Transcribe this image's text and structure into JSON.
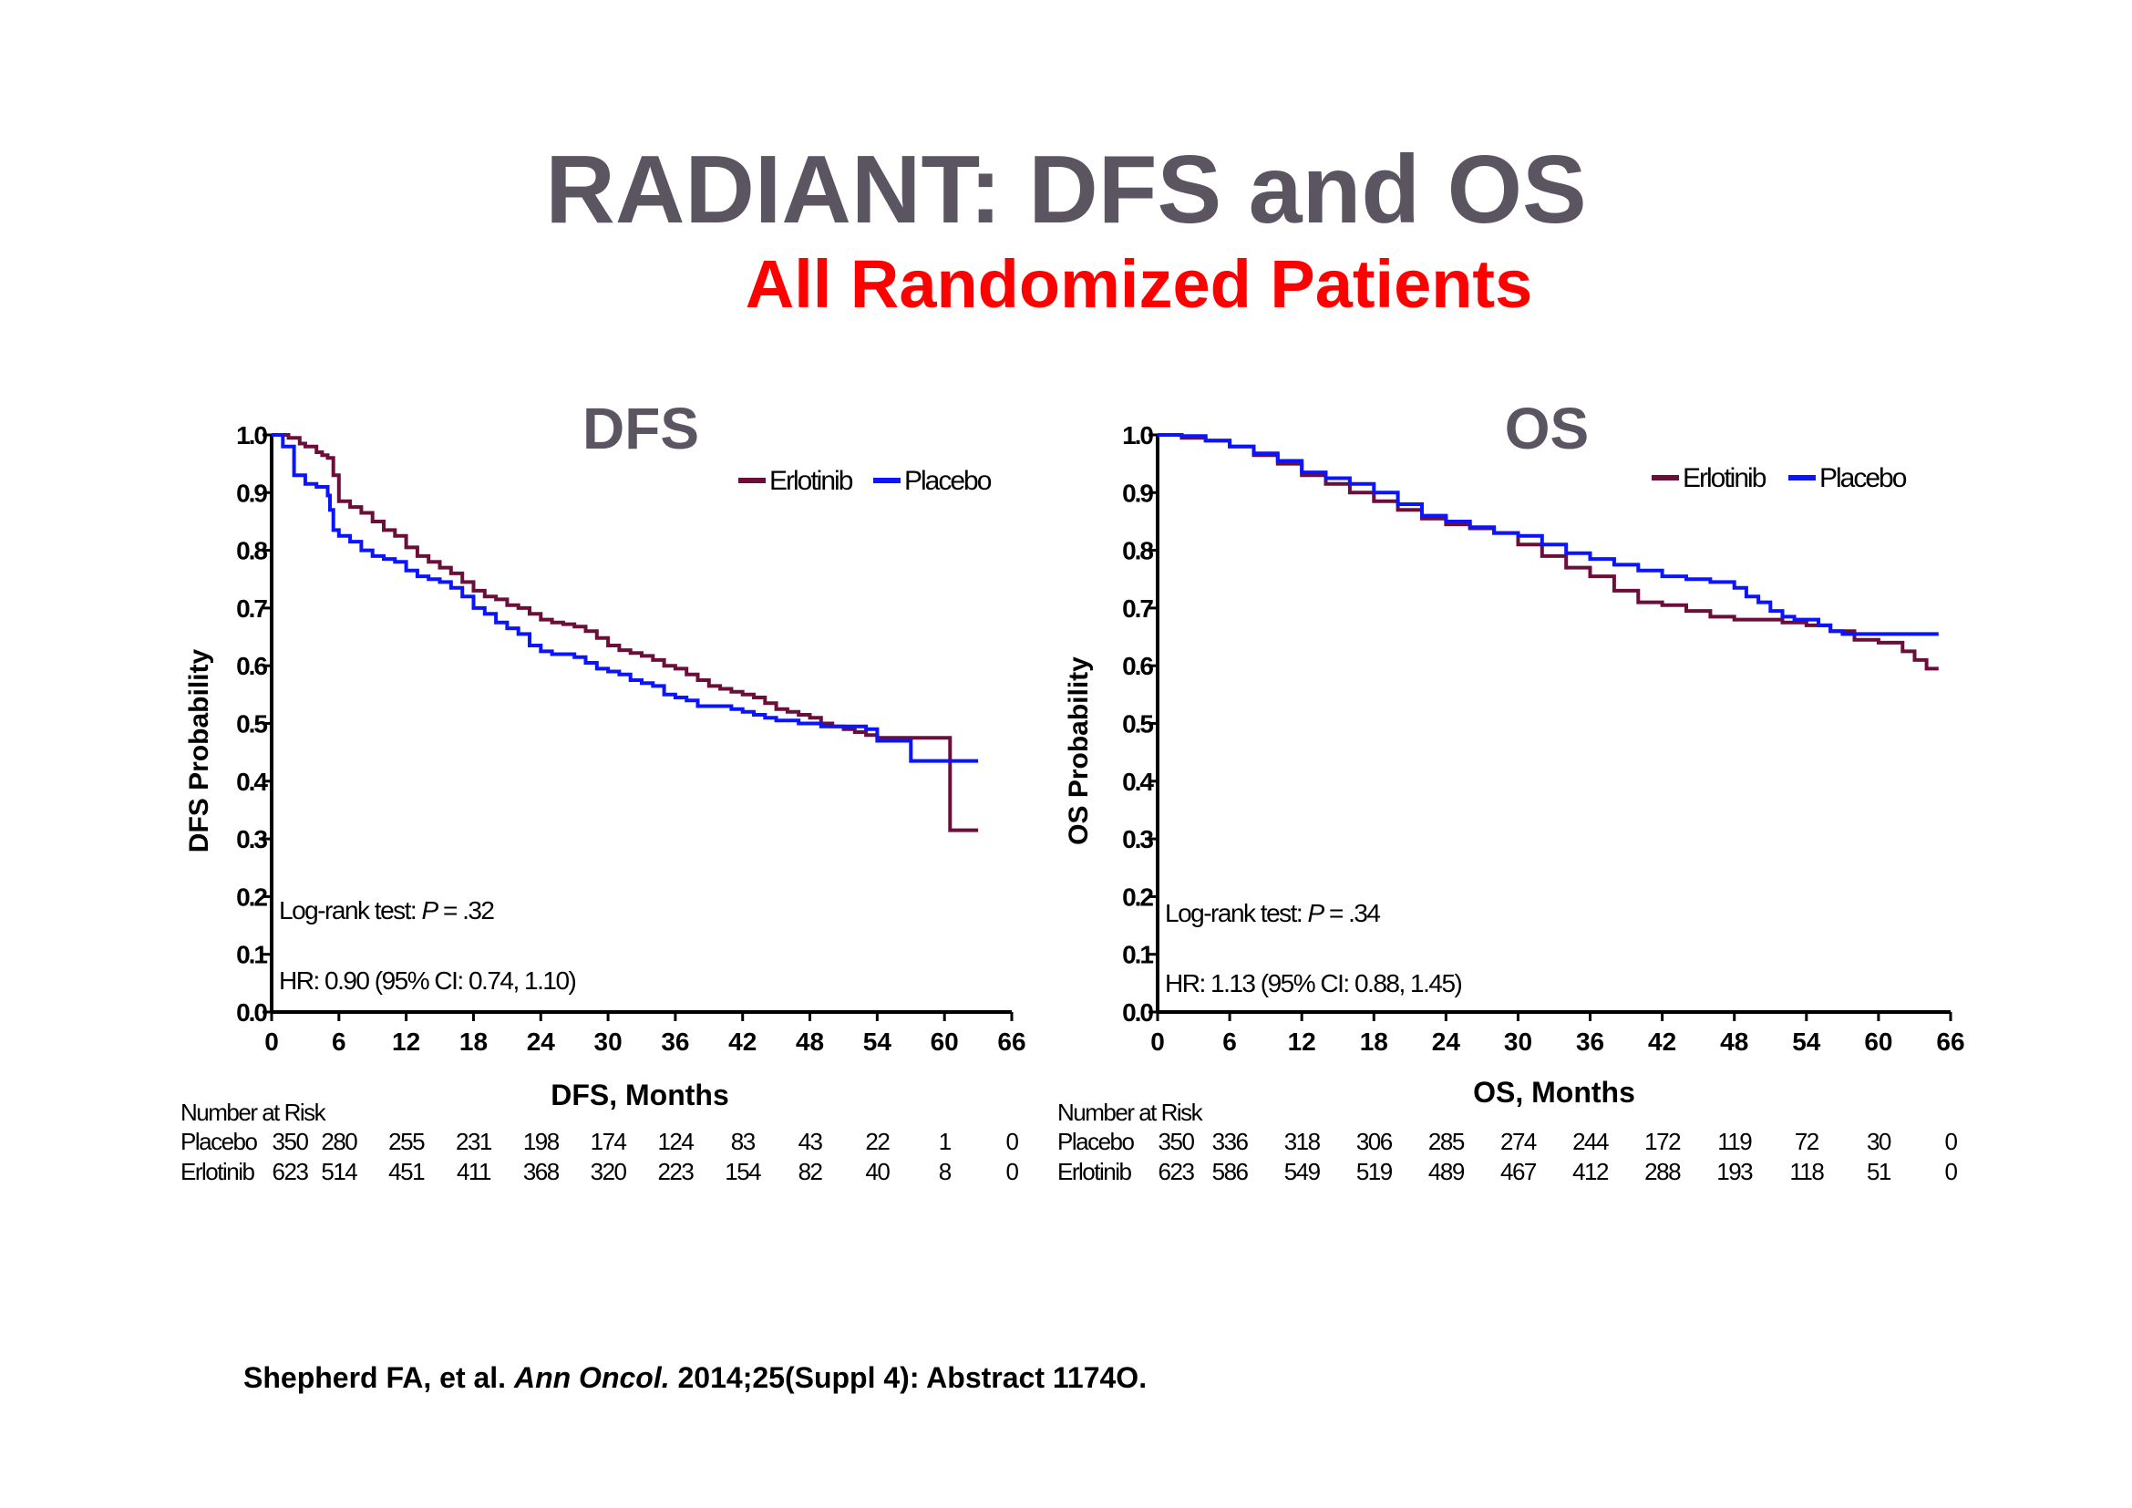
{
  "title": "RADIANT: DFS and OS",
  "subtitle": "All Randomized Patients",
  "citation": {
    "authors": "Shepherd FA, et al.",
    "journal": "Ann Oncol.",
    "details": "2014;25(Suppl 4): Abstract 1174O."
  },
  "colors": {
    "erlotinib": "#6b0f3a",
    "placebo": "#0a14ff",
    "title": "#5a5560",
    "subtitle": "#ff0000"
  },
  "chart_data": [
    {
      "type": "line",
      "title": "DFS",
      "xlabel": "DFS, Months",
      "ylabel": "DFS Probability",
      "xlim": [
        0,
        66
      ],
      "ylim": [
        0,
        1.0
      ],
      "xticks": [
        "0",
        "6",
        "12",
        "18",
        "24",
        "30",
        "36",
        "42",
        "48",
        "54",
        "60",
        "66"
      ],
      "yticks": [
        "0.0",
        "0.1",
        "0.2",
        "0.3",
        "0.4",
        "0.5",
        "0.6",
        "0.7",
        "0.8",
        "0.9",
        "1.0"
      ],
      "legend": [
        "Erlotinib",
        "Placebo"
      ],
      "legend_position": "top-right",
      "annotations": {
        "logrank_prefix": "Log-rank test: ",
        "p_label": "P",
        "p_value": " = .32",
        "hr": "HR: 0.90 (95% CI: 0.74, 1.10)"
      },
      "series": [
        {
          "name": "Erlotinib",
          "x": [
            0,
            1.5,
            2.5,
            3,
            4,
            4.5,
            5,
            5.5,
            6,
            7,
            8,
            9,
            10,
            11,
            12,
            13,
            14,
            15,
            16,
            17,
            18,
            19,
            20,
            21,
            22,
            23,
            24,
            25,
            26,
            27,
            28,
            29,
            30,
            31,
            32,
            33,
            34,
            35,
            36,
            37,
            38,
            39,
            40,
            41,
            42,
            43,
            44,
            45,
            46,
            47,
            48,
            49,
            50,
            51,
            52,
            53,
            54,
            55,
            56,
            57,
            58,
            59,
            60,
            60.5,
            61,
            62,
            63
          ],
          "y": [
            1.0,
            0.995,
            0.985,
            0.98,
            0.97,
            0.965,
            0.96,
            0.93,
            0.885,
            0.875,
            0.865,
            0.85,
            0.835,
            0.825,
            0.805,
            0.79,
            0.78,
            0.77,
            0.76,
            0.745,
            0.73,
            0.72,
            0.715,
            0.705,
            0.7,
            0.69,
            0.68,
            0.675,
            0.672,
            0.668,
            0.66,
            0.648,
            0.635,
            0.627,
            0.622,
            0.617,
            0.61,
            0.6,
            0.595,
            0.585,
            0.575,
            0.565,
            0.56,
            0.555,
            0.55,
            0.545,
            0.535,
            0.525,
            0.52,
            0.515,
            0.51,
            0.5,
            0.495,
            0.49,
            0.485,
            0.48,
            0.475,
            0.475,
            0.475,
            0.475,
            0.475,
            0.475,
            0.475,
            0.315,
            0.315,
            0.315,
            0.315
          ]
        },
        {
          "name": "Placebo",
          "x": [
            0,
            1,
            2,
            3,
            4,
            5,
            5.2,
            5.5,
            6,
            7,
            8,
            9,
            10,
            11,
            12,
            13,
            14,
            15,
            16,
            17,
            18,
            19,
            20,
            21,
            22,
            23,
            24,
            25,
            26,
            27,
            28,
            29,
            30,
            31,
            32,
            33,
            34,
            35,
            36,
            37,
            38,
            39,
            40,
            41,
            42,
            43,
            44,
            45,
            46,
            47,
            48,
            49,
            50,
            51,
            52,
            53,
            54,
            55,
            56,
            57,
            58,
            59,
            60,
            61,
            62,
            63
          ],
          "y": [
            1.0,
            0.98,
            0.93,
            0.915,
            0.91,
            0.895,
            0.87,
            0.835,
            0.825,
            0.815,
            0.8,
            0.79,
            0.785,
            0.78,
            0.765,
            0.755,
            0.75,
            0.745,
            0.735,
            0.72,
            0.7,
            0.69,
            0.675,
            0.665,
            0.655,
            0.635,
            0.625,
            0.62,
            0.62,
            0.615,
            0.605,
            0.595,
            0.59,
            0.585,
            0.575,
            0.57,
            0.565,
            0.55,
            0.545,
            0.54,
            0.53,
            0.53,
            0.53,
            0.525,
            0.52,
            0.515,
            0.51,
            0.505,
            0.505,
            0.5,
            0.5,
            0.495,
            0.495,
            0.495,
            0.495,
            0.49,
            0.47,
            0.47,
            0.47,
            0.435,
            0.435,
            0.435,
            0.435,
            0.435,
            0.435,
            0.435
          ]
        }
      ],
      "number_at_risk": {
        "header": "Number at Risk",
        "rows": [
          {
            "label": "Placebo",
            "values": [
              "350",
              "280",
              "255",
              "231",
              "198",
              "174",
              "124",
              "83",
              "43",
              "22",
              "1",
              "0"
            ]
          },
          {
            "label": "Erlotinib",
            "values": [
              "623",
              "514",
              "451",
              "411",
              "368",
              "320",
              "223",
              "154",
              "82",
              "40",
              "8",
              "0"
            ]
          }
        ]
      }
    },
    {
      "type": "line",
      "title": "OS",
      "xlabel": "OS, Months",
      "ylabel": "OS Probability",
      "xlim": [
        0,
        66
      ],
      "ylim": [
        0,
        1.0
      ],
      "xticks": [
        "0",
        "6",
        "12",
        "18",
        "24",
        "30",
        "36",
        "42",
        "48",
        "54",
        "60",
        "66"
      ],
      "yticks": [
        "0.0",
        "0.1",
        "0.2",
        "0.3",
        "0.4",
        "0.5",
        "0.6",
        "0.7",
        "0.8",
        "0.9",
        "1.0"
      ],
      "legend": [
        "Erlotinib",
        "Placebo"
      ],
      "legend_position": "top-right",
      "annotations": {
        "logrank_prefix": "Log-rank test: ",
        "p_label": "P",
        "p_value": " = .34",
        "hr": "HR: 1.13 (95% CI: 0.88, 1.45)"
      },
      "series": [
        {
          "name": "Erlotinib",
          "x": [
            0,
            2,
            4,
            6,
            8,
            10,
            12,
            14,
            16,
            18,
            20,
            22,
            24,
            26,
            28,
            30,
            32,
            34,
            36,
            38,
            40,
            42,
            44,
            46,
            48,
            50,
            52,
            54,
            56,
            58,
            60,
            62,
            63,
            64,
            65
          ],
          "y": [
            1.0,
            0.995,
            0.99,
            0.98,
            0.965,
            0.95,
            0.93,
            0.915,
            0.9,
            0.885,
            0.87,
            0.855,
            0.845,
            0.838,
            0.83,
            0.81,
            0.79,
            0.77,
            0.755,
            0.73,
            0.71,
            0.705,
            0.695,
            0.685,
            0.68,
            0.68,
            0.675,
            0.67,
            0.66,
            0.645,
            0.64,
            0.625,
            0.61,
            0.595,
            0.595
          ]
        },
        {
          "name": "Placebo",
          "x": [
            0,
            2,
            4,
            6,
            8,
            10,
            12,
            14,
            16,
            18,
            20,
            22,
            24,
            26,
            28,
            30,
            32,
            34,
            36,
            38,
            40,
            42,
            44,
            46,
            48,
            49,
            50,
            51,
            52,
            53,
            54,
            55,
            56,
            57,
            58,
            59,
            60,
            62,
            64,
            65
          ],
          "y": [
            1.0,
            0.998,
            0.99,
            0.98,
            0.968,
            0.955,
            0.935,
            0.925,
            0.915,
            0.9,
            0.88,
            0.86,
            0.85,
            0.84,
            0.83,
            0.825,
            0.81,
            0.795,
            0.785,
            0.775,
            0.765,
            0.755,
            0.75,
            0.745,
            0.735,
            0.72,
            0.71,
            0.695,
            0.685,
            0.68,
            0.68,
            0.67,
            0.66,
            0.655,
            0.655,
            0.655,
            0.655,
            0.655,
            0.655,
            0.655
          ]
        }
      ],
      "number_at_risk": {
        "header": "Number at Risk",
        "rows": [
          {
            "label": "Placebo",
            "values": [
              "350",
              "336",
              "318",
              "306",
              "285",
              "274",
              "244",
              "172",
              "119",
              "72",
              "30",
              "0"
            ]
          },
          {
            "label": "Erlotinib",
            "values": [
              "623",
              "586",
              "549",
              "519",
              "489",
              "467",
              "412",
              "288",
              "193",
              "118",
              "51",
              "0"
            ]
          }
        ]
      }
    }
  ]
}
